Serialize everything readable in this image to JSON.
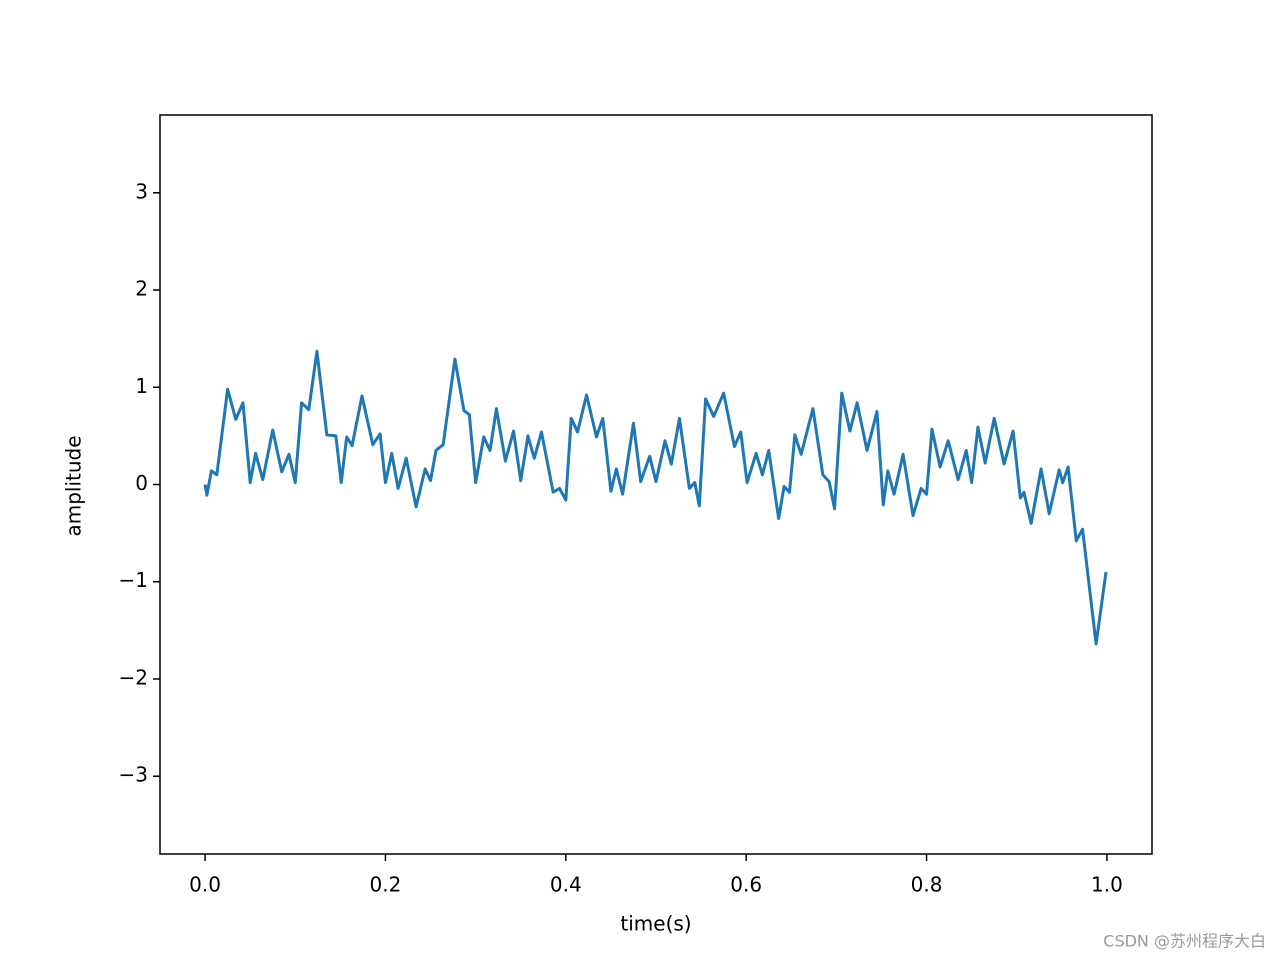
{
  "chart_data": {
    "type": "line",
    "xlabel": "time(s)",
    "ylabel": "amplitude",
    "watermark": "CSDN @苏州程序大白",
    "xlim": [
      -0.05,
      1.05
    ],
    "ylim": [
      -3.8,
      3.8
    ],
    "xticks": [
      {
        "value": 0,
        "label": "0.0"
      },
      0.2,
      0.4,
      0.6,
      0.8,
      {
        "value": 1,
        "label": "1.0"
      }
    ],
    "yticks": [
      {
        "value": -3,
        "label": "−3"
      },
      {
        "value": -2,
        "label": "−2"
      },
      {
        "value": -1,
        "label": "−1"
      },
      0,
      1,
      2,
      3
    ],
    "series": [
      {
        "color": "#1f77b4",
        "x": [
          0,
          0.002,
          0.007,
          0.013,
          0.025,
          0.034,
          0.042,
          0.05,
          0.056,
          0.064,
          0.075,
          0.085,
          0.093,
          0.1,
          0.107,
          0.115,
          0.124,
          0.135,
          0.145,
          0.151,
          0.157,
          0.163,
          0.174,
          0.186,
          0.194,
          0.2,
          0.207,
          0.214,
          0.223,
          0.234,
          0.244,
          0.25,
          0.256,
          0.264,
          0.277,
          0.287,
          0.293,
          0.3,
          0.309,
          0.316,
          0.323,
          0.333,
          0.342,
          0.35,
          0.358,
          0.365,
          0.373,
          0.386,
          0.393,
          0.4,
          0.406,
          0.413,
          0.423,
          0.434,
          0.441,
          0.45,
          0.456,
          0.463,
          0.475,
          0.483,
          0.493,
          0.5,
          0.51,
          0.517,
          0.526,
          0.537,
          0.543,
          0.548,
          0.555,
          0.564,
          0.575,
          0.587,
          0.594,
          0.601,
          0.611,
          0.618,
          0.625,
          0.636,
          0.642,
          0.648,
          0.654,
          0.661,
          0.674,
          0.685,
          0.692,
          0.698,
          0.706,
          0.715,
          0.723,
          0.734,
          0.745,
          0.752,
          0.757,
          0.764,
          0.774,
          0.785,
          0.794,
          0.8,
          0.806,
          0.815,
          0.824,
          0.835,
          0.844,
          0.85,
          0.857,
          0.865,
          0.875,
          0.886,
          0.896,
          0.904,
          0.908,
          0.916,
          0.927,
          0.936,
          0.947,
          0.951,
          0.957,
          0.966,
          0.973,
          0.988,
          0.999
        ],
        "values": [
          0,
          -0.11,
          0.14,
          0.1,
          0.98,
          0.67,
          0.84,
          0.02,
          0.32,
          0.05,
          0.56,
          0.13,
          0.31,
          0.02,
          0.84,
          0.77,
          1.37,
          0.51,
          0.5,
          0.02,
          0.49,
          0.4,
          0.91,
          0.41,
          0.52,
          0.02,
          0.32,
          -0.04,
          0.27,
          -0.23,
          0.16,
          0.04,
          0.35,
          0.41,
          1.29,
          0.76,
          0.72,
          0.02,
          0.49,
          0.35,
          0.78,
          0.24,
          0.55,
          0.04,
          0.5,
          0.27,
          0.54,
          -0.08,
          -0.04,
          -0.16,
          0.68,
          0.54,
          0.92,
          0.49,
          0.68,
          -0.07,
          0.16,
          -0.1,
          0.63,
          0.03,
          0.29,
          0.03,
          0.45,
          0.21,
          0.68,
          -0.04,
          0.02,
          -0.22,
          0.88,
          0.7,
          0.94,
          0.39,
          0.54,
          0.02,
          0.32,
          0.1,
          0.35,
          -0.35,
          -0.02,
          -0.08,
          0.51,
          0.31,
          0.78,
          0.1,
          0.03,
          -0.25,
          0.94,
          0.55,
          0.84,
          0.35,
          0.75,
          -0.21,
          0.14,
          -0.1,
          0.31,
          -0.32,
          -0.04,
          -0.1,
          0.57,
          0.18,
          0.45,
          0.05,
          0.35,
          0.02,
          0.59,
          0.22,
          0.68,
          0.21,
          0.55,
          -0.14,
          -0.08,
          -0.4,
          0.16,
          -0.3,
          0.15,
          0.02,
          0.18,
          -0.58,
          -0.46,
          -1.64,
          -0.9
        ]
      }
    ]
  }
}
